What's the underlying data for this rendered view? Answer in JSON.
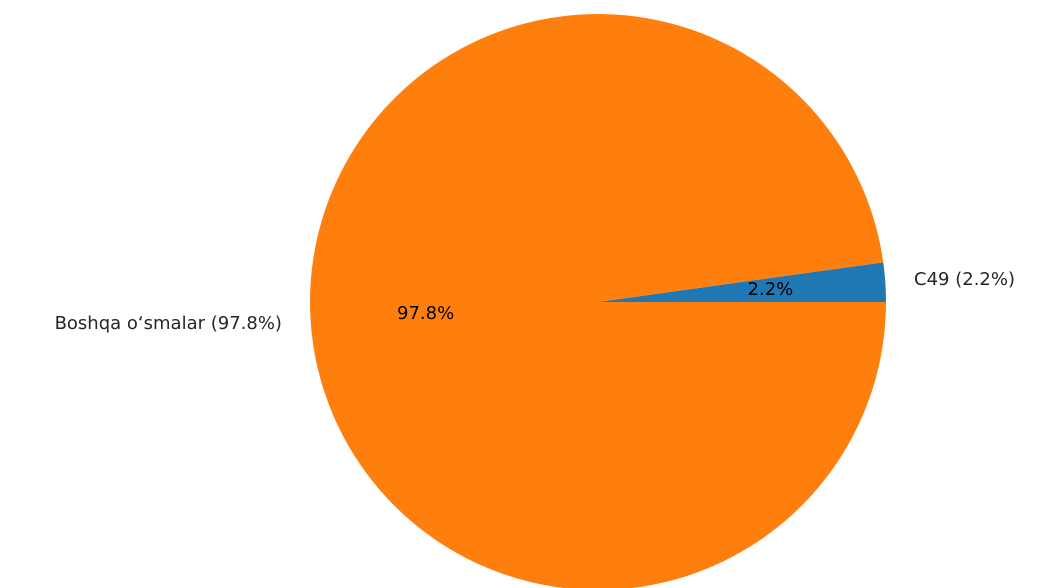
{
  "chart_data": {
    "type": "pie",
    "title": "",
    "slices": [
      {
        "label": "C49 (2.2%)",
        "value": 2.2,
        "pct_label": "2.2%",
        "color": "#1f77b4"
      },
      {
        "label": "Boshqa o‘smalar (97.8%)",
        "value": 97.8,
        "pct_label": "97.8%",
        "color": "#ff7f0e"
      }
    ],
    "start_angle_deg": 0,
    "direction": "counterclockwise",
    "legend": "none"
  }
}
